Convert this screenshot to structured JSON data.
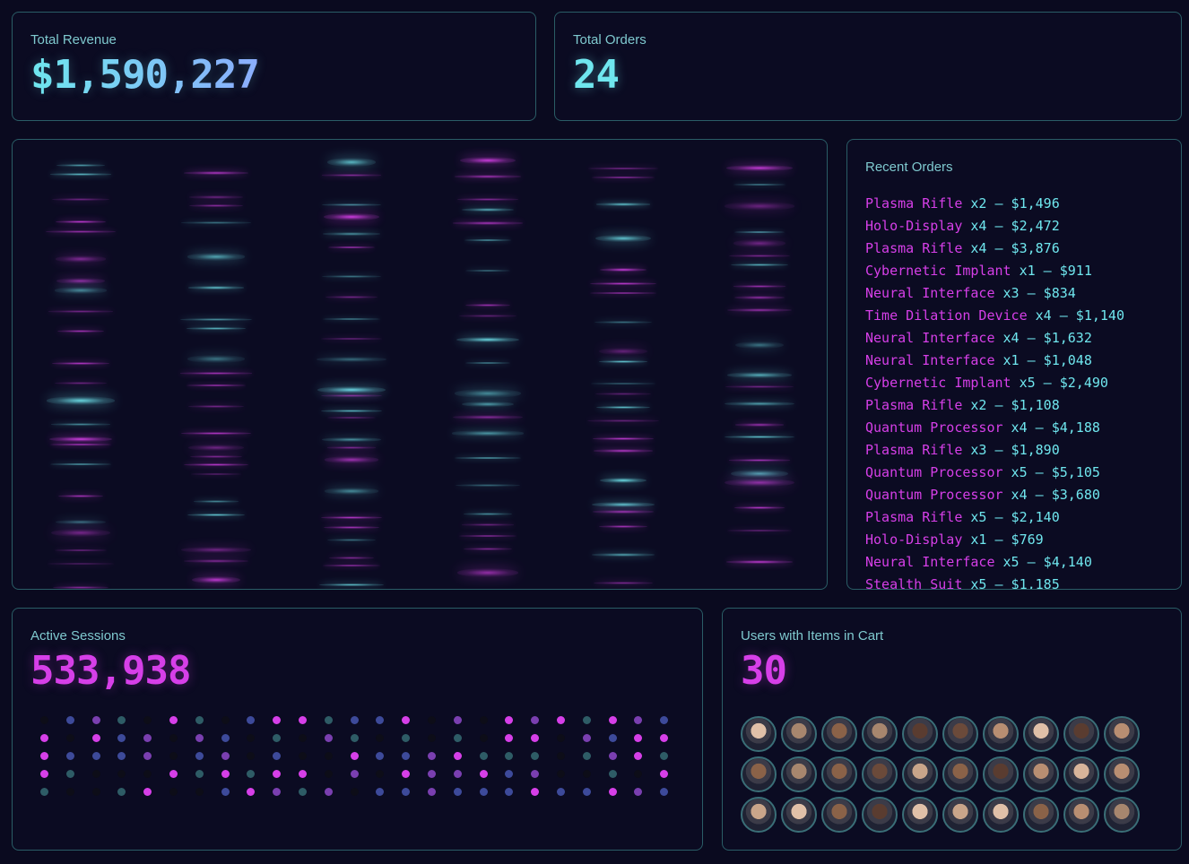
{
  "revenue": {
    "label": "Total Revenue",
    "value": "$1,590,227"
  },
  "orders": {
    "label": "Total Orders",
    "value": "24"
  },
  "recent": {
    "label": "Recent Orders",
    "items": [
      {
        "name": "Plasma Rifle",
        "rest": " x2 – $1,496"
      },
      {
        "name": "Holo-Display",
        "rest": " x4 – $2,472"
      },
      {
        "name": "Plasma Rifle",
        "rest": " x4 – $3,876"
      },
      {
        "name": "Cybernetic Implant",
        "rest": " x1 – $911"
      },
      {
        "name": "Neural Interface",
        "rest": " x3 – $834"
      },
      {
        "name": "Time Dilation Device",
        "rest": " x4 – $1,140"
      },
      {
        "name": "Neural Interface",
        "rest": " x4 – $1,632"
      },
      {
        "name": "Neural Interface",
        "rest": " x1 – $1,048"
      },
      {
        "name": "Cybernetic Implant",
        "rest": " x5 – $2,490"
      },
      {
        "name": "Plasma Rifle",
        "rest": " x2 – $1,108"
      },
      {
        "name": "Quantum Processor",
        "rest": " x4 – $4,188"
      },
      {
        "name": "Plasma Rifle",
        "rest": " x3 – $1,890"
      },
      {
        "name": "Quantum Processor",
        "rest": " x5 – $5,105"
      },
      {
        "name": "Quantum Processor",
        "rest": " x4 – $3,680"
      },
      {
        "name": "Plasma Rifle",
        "rest": " x5 – $2,140"
      },
      {
        "name": "Holo-Display",
        "rest": " x1 – $769"
      },
      {
        "name": "Neural Interface",
        "rest": " x5 – $4,140"
      },
      {
        "name": "Stealth Suit",
        "rest": " x5 – $1,185"
      }
    ]
  },
  "sessions": {
    "label": "Active Sessions",
    "value": "533,938"
  },
  "cart": {
    "label": "Users with Items in Cart",
    "value": "30"
  },
  "colors": {
    "magenta": "#d63fe8",
    "cyan": "#6fe6ee",
    "blue": "#7fb8ff"
  }
}
